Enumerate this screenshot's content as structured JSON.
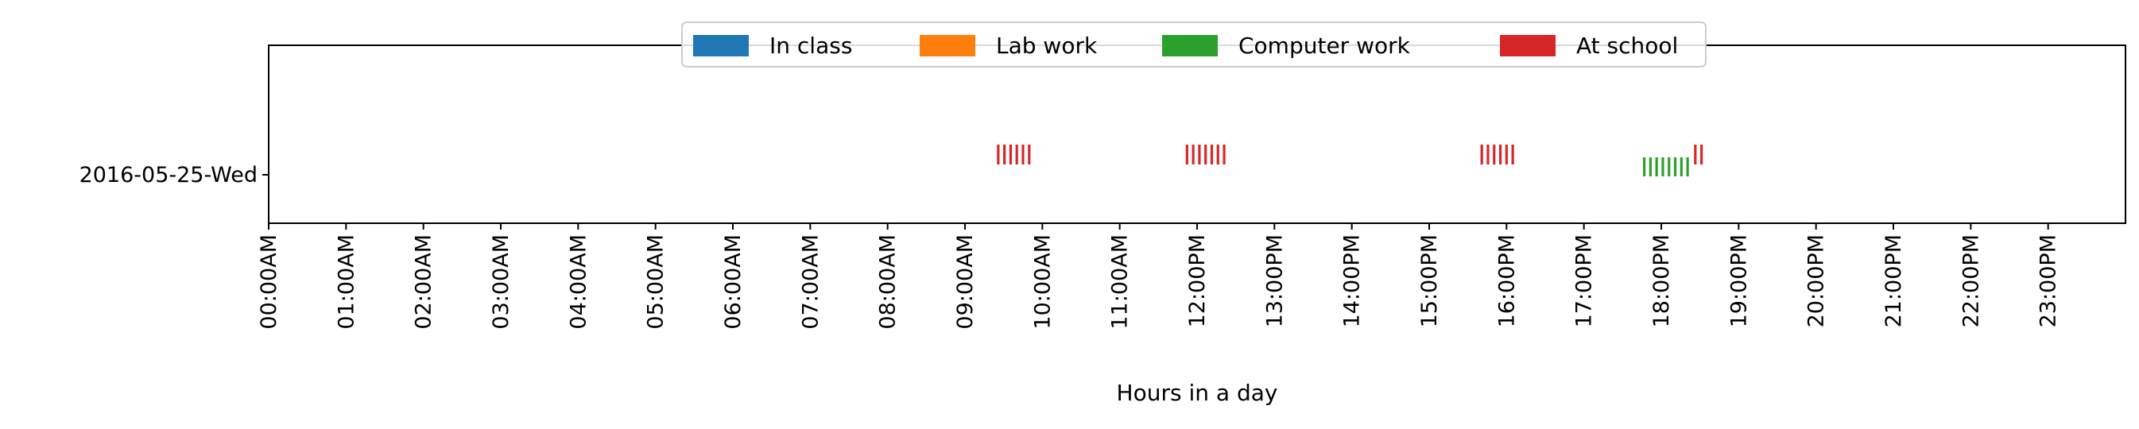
{
  "chart_data": {
    "type": "timeline",
    "xlabel": "Hours in a day",
    "ylabel": "",
    "xlim": [
      0,
      24
    ],
    "x_ticks": [
      "00:00AM",
      "01:00AM",
      "02:00AM",
      "03:00AM",
      "04:00AM",
      "05:00AM",
      "06:00AM",
      "07:00AM",
      "08:00AM",
      "09:00AM",
      "10:00AM",
      "11:00AM",
      "12:00PM",
      "13:00PM",
      "14:00PM",
      "15:00PM",
      "16:00PM",
      "17:00PM",
      "18:00PM",
      "19:00PM",
      "20:00PM",
      "21:00PM",
      "22:00PM",
      "23:00PM"
    ],
    "categories": [
      "2016-05-25-Wed"
    ],
    "legend_position": "top-center",
    "series": [
      {
        "name": "In class",
        "color": "#1f77b4",
        "events": []
      },
      {
        "name": "Lab work",
        "color": "#ff7f0e",
        "events": []
      },
      {
        "name": "Computer work",
        "color": "#2ca02c",
        "events": [
          17.78,
          17.86,
          17.94,
          18.02,
          18.1,
          18.18,
          18.26,
          18.34
        ]
      },
      {
        "name": "At school",
        "color": "#d62728",
        "events": [
          9.43,
          9.51,
          9.59,
          9.67,
          9.75,
          9.83,
          11.87,
          11.95,
          12.03,
          12.11,
          12.19,
          12.27,
          12.35,
          15.68,
          15.76,
          15.84,
          15.92,
          16.0,
          16.08,
          18.44,
          18.52
        ]
      }
    ]
  }
}
